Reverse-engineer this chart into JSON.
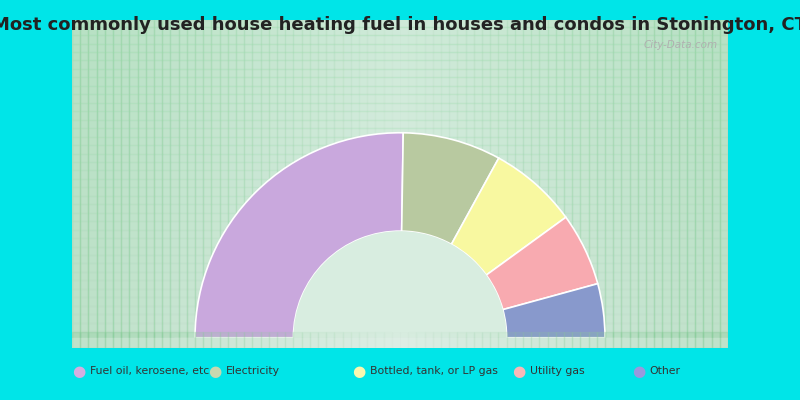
{
  "title": "Most commonly used house heating fuel in houses and condos in Stonington, CT",
  "categories": [
    "Fuel oil, kerosene, etc.",
    "Electricity",
    "Bottled, tank, or LP gas",
    "Utility gas",
    "Other"
  ],
  "values": [
    50.5,
    15.5,
    14.0,
    11.5,
    8.5
  ],
  "colors": [
    "#c9a8dd",
    "#b8c9a0",
    "#f8f8a0",
    "#f8aab0",
    "#8899cc"
  ],
  "legend_colors": [
    "#d4aee0",
    "#c8d8b0",
    "#f8f8b0",
    "#f8b8b8",
    "#9999dd"
  ],
  "bg_outer": "#00e5e8",
  "bg_inner": "#d8ede0",
  "title_fontsize": 13,
  "watermark": "City-Data.com",
  "outer_r": 1.0,
  "inner_r": 0.52
}
